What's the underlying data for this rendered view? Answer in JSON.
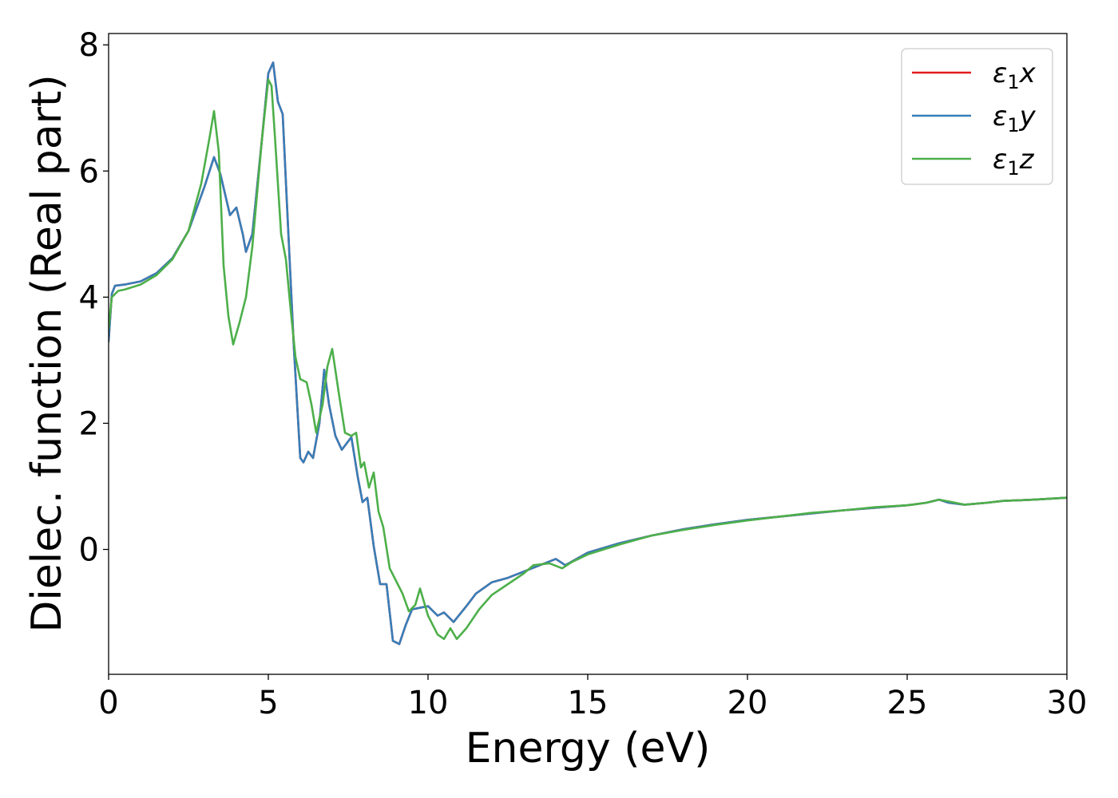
{
  "chart_data": {
    "type": "line",
    "title": "",
    "xlabel": "Energy (eV)",
    "ylabel": "Dielec. function (Real part)",
    "xlim": [
      0,
      30
    ],
    "ylim": [
      -1.98,
      8.18
    ],
    "xticks": [
      "0",
      "5",
      "10",
      "15",
      "20",
      "25",
      "30"
    ],
    "yticks": [
      "0",
      "2",
      "4",
      "6",
      "8"
    ],
    "grid": false,
    "legend_position": "top-right",
    "series": [
      {
        "name": "ε1x",
        "legend_main": "ε",
        "legend_sub": "1",
        "legend_suffix": "x",
        "color": "#e41a1c",
        "points": [
          [
            0,
            3.3
          ],
          [
            0.1,
            4.05
          ],
          [
            0.2,
            4.18
          ],
          [
            0.5,
            4.2
          ],
          [
            1,
            4.25
          ],
          [
            1.5,
            4.38
          ],
          [
            2,
            4.62
          ],
          [
            2.5,
            5.05
          ],
          [
            3,
            5.75
          ],
          [
            3.3,
            6.22
          ],
          [
            3.5,
            5.95
          ],
          [
            3.8,
            5.3
          ],
          [
            4.0,
            5.42
          ],
          [
            4.2,
            5.0
          ],
          [
            4.3,
            4.72
          ],
          [
            4.5,
            5.0
          ],
          [
            4.8,
            6.5
          ],
          [
            5.0,
            7.55
          ],
          [
            5.15,
            7.72
          ],
          [
            5.3,
            7.1
          ],
          [
            5.45,
            6.9
          ],
          [
            5.6,
            5.3
          ],
          [
            5.8,
            3.2
          ],
          [
            6.0,
            1.45
          ],
          [
            6.1,
            1.38
          ],
          [
            6.25,
            1.55
          ],
          [
            6.4,
            1.45
          ],
          [
            6.6,
            2.0
          ],
          [
            6.75,
            2.85
          ],
          [
            6.9,
            2.3
          ],
          [
            7.1,
            1.8
          ],
          [
            7.3,
            1.58
          ],
          [
            7.6,
            1.78
          ],
          [
            7.8,
            1.15
          ],
          [
            7.95,
            0.75
          ],
          [
            8.1,
            0.82
          ],
          [
            8.3,
            0.05
          ],
          [
            8.5,
            -0.55
          ],
          [
            8.7,
            -0.55
          ],
          [
            8.9,
            -1.45
          ],
          [
            9.1,
            -1.5
          ],
          [
            9.3,
            -1.2
          ],
          [
            9.5,
            -0.95
          ],
          [
            9.8,
            -0.92
          ],
          [
            10.0,
            -0.9
          ],
          [
            10.3,
            -1.05
          ],
          [
            10.5,
            -1.0
          ],
          [
            10.8,
            -1.15
          ],
          [
            11.2,
            -0.9
          ],
          [
            11.5,
            -0.7
          ],
          [
            12,
            -0.52
          ],
          [
            12.5,
            -0.45
          ],
          [
            13,
            -0.35
          ],
          [
            13.5,
            -0.25
          ],
          [
            14,
            -0.15
          ],
          [
            14.3,
            -0.25
          ],
          [
            15,
            -0.05
          ],
          [
            16,
            0.1
          ],
          [
            17,
            0.22
          ],
          [
            18,
            0.32
          ],
          [
            19,
            0.4
          ],
          [
            20,
            0.47
          ],
          [
            21,
            0.52
          ],
          [
            22,
            0.57
          ],
          [
            23,
            0.62
          ],
          [
            24,
            0.66
          ],
          [
            25,
            0.7
          ],
          [
            25.6,
            0.74
          ],
          [
            26,
            0.79
          ],
          [
            26.3,
            0.74
          ],
          [
            26.8,
            0.71
          ],
          [
            27.5,
            0.74
          ],
          [
            28,
            0.77
          ],
          [
            29,
            0.79
          ],
          [
            30,
            0.82
          ]
        ]
      },
      {
        "name": "ε1y",
        "legend_main": "ε",
        "legend_sub": "1",
        "legend_suffix": "y",
        "color": "#377eb8",
        "points": [
          [
            0,
            3.3
          ],
          [
            0.1,
            4.05
          ],
          [
            0.2,
            4.18
          ],
          [
            0.5,
            4.2
          ],
          [
            1,
            4.25
          ],
          [
            1.5,
            4.38
          ],
          [
            2,
            4.62
          ],
          [
            2.5,
            5.05
          ],
          [
            3,
            5.75
          ],
          [
            3.3,
            6.22
          ],
          [
            3.5,
            5.95
          ],
          [
            3.8,
            5.3
          ],
          [
            4.0,
            5.42
          ],
          [
            4.2,
            5.0
          ],
          [
            4.3,
            4.72
          ],
          [
            4.5,
            5.0
          ],
          [
            4.8,
            6.5
          ],
          [
            5.0,
            7.55
          ],
          [
            5.15,
            7.72
          ],
          [
            5.3,
            7.1
          ],
          [
            5.45,
            6.9
          ],
          [
            5.6,
            5.3
          ],
          [
            5.8,
            3.2
          ],
          [
            6.0,
            1.45
          ],
          [
            6.1,
            1.38
          ],
          [
            6.25,
            1.55
          ],
          [
            6.4,
            1.45
          ],
          [
            6.6,
            2.0
          ],
          [
            6.75,
            2.85
          ],
          [
            6.9,
            2.3
          ],
          [
            7.1,
            1.8
          ],
          [
            7.3,
            1.58
          ],
          [
            7.6,
            1.78
          ],
          [
            7.8,
            1.15
          ],
          [
            7.95,
            0.75
          ],
          [
            8.1,
            0.82
          ],
          [
            8.3,
            0.05
          ],
          [
            8.5,
            -0.55
          ],
          [
            8.7,
            -0.55
          ],
          [
            8.9,
            -1.45
          ],
          [
            9.1,
            -1.5
          ],
          [
            9.3,
            -1.2
          ],
          [
            9.5,
            -0.95
          ],
          [
            9.8,
            -0.92
          ],
          [
            10.0,
            -0.9
          ],
          [
            10.3,
            -1.05
          ],
          [
            10.5,
            -1.0
          ],
          [
            10.8,
            -1.15
          ],
          [
            11.2,
            -0.9
          ],
          [
            11.5,
            -0.7
          ],
          [
            12,
            -0.52
          ],
          [
            12.5,
            -0.45
          ],
          [
            13,
            -0.35
          ],
          [
            13.5,
            -0.25
          ],
          [
            14,
            -0.15
          ],
          [
            14.3,
            -0.25
          ],
          [
            15,
            -0.05
          ],
          [
            16,
            0.1
          ],
          [
            17,
            0.22
          ],
          [
            18,
            0.32
          ],
          [
            19,
            0.4
          ],
          [
            20,
            0.47
          ],
          [
            21,
            0.52
          ],
          [
            22,
            0.57
          ],
          [
            23,
            0.62
          ],
          [
            24,
            0.66
          ],
          [
            25,
            0.7
          ],
          [
            25.6,
            0.74
          ],
          [
            26,
            0.79
          ],
          [
            26.3,
            0.74
          ],
          [
            26.8,
            0.71
          ],
          [
            27.5,
            0.74
          ],
          [
            28,
            0.77
          ],
          [
            29,
            0.79
          ],
          [
            30,
            0.82
          ]
        ]
      },
      {
        "name": "ε1z",
        "legend_main": "ε",
        "legend_sub": "1",
        "legend_suffix": "z",
        "color": "#4daf4a",
        "points": [
          [
            0,
            3.5
          ],
          [
            0.1,
            4.0
          ],
          [
            0.3,
            4.1
          ],
          [
            0.5,
            4.12
          ],
          [
            1,
            4.2
          ],
          [
            1.5,
            4.35
          ],
          [
            2,
            4.6
          ],
          [
            2.5,
            5.05
          ],
          [
            2.9,
            5.8
          ],
          [
            3.15,
            6.5
          ],
          [
            3.3,
            6.95
          ],
          [
            3.45,
            6.3
          ],
          [
            3.6,
            4.5
          ],
          [
            3.75,
            3.7
          ],
          [
            3.9,
            3.25
          ],
          [
            4.1,
            3.6
          ],
          [
            4.3,
            4.0
          ],
          [
            4.5,
            4.8
          ],
          [
            4.8,
            6.5
          ],
          [
            5.0,
            7.45
          ],
          [
            5.1,
            7.35
          ],
          [
            5.2,
            6.6
          ],
          [
            5.4,
            5.0
          ],
          [
            5.55,
            4.6
          ],
          [
            5.7,
            3.8
          ],
          [
            5.85,
            3.05
          ],
          [
            6.0,
            2.7
          ],
          [
            6.2,
            2.65
          ],
          [
            6.35,
            2.3
          ],
          [
            6.5,
            1.85
          ],
          [
            6.7,
            2.3
          ],
          [
            6.85,
            2.9
          ],
          [
            7.0,
            3.18
          ],
          [
            7.2,
            2.5
          ],
          [
            7.4,
            1.85
          ],
          [
            7.6,
            1.8
          ],
          [
            7.75,
            1.85
          ],
          [
            7.9,
            1.3
          ],
          [
            8.0,
            1.38
          ],
          [
            8.15,
            0.98
          ],
          [
            8.3,
            1.22
          ],
          [
            8.45,
            0.6
          ],
          [
            8.6,
            0.35
          ],
          [
            8.8,
            -0.3
          ],
          [
            9.0,
            -0.5
          ],
          [
            9.2,
            -0.7
          ],
          [
            9.4,
            -0.98
          ],
          [
            9.6,
            -0.88
          ],
          [
            9.75,
            -0.62
          ],
          [
            10.0,
            -1.05
          ],
          [
            10.3,
            -1.35
          ],
          [
            10.5,
            -1.42
          ],
          [
            10.7,
            -1.25
          ],
          [
            10.9,
            -1.42
          ],
          [
            11.2,
            -1.25
          ],
          [
            11.6,
            -0.95
          ],
          [
            12,
            -0.72
          ],
          [
            12.5,
            -0.55
          ],
          [
            13,
            -0.38
          ],
          [
            13.3,
            -0.25
          ],
          [
            13.8,
            -0.22
          ],
          [
            14.2,
            -0.3
          ],
          [
            14.5,
            -0.2
          ],
          [
            15,
            -0.08
          ],
          [
            16,
            0.08
          ],
          [
            17,
            0.22
          ],
          [
            18,
            0.31
          ],
          [
            19,
            0.39
          ],
          [
            20,
            0.46
          ],
          [
            21,
            0.52
          ],
          [
            22,
            0.58
          ],
          [
            23,
            0.62
          ],
          [
            24,
            0.67
          ],
          [
            25,
            0.7
          ],
          [
            25.6,
            0.74
          ],
          [
            26,
            0.79
          ],
          [
            26.3,
            0.76
          ],
          [
            26.8,
            0.71
          ],
          [
            27.5,
            0.74
          ],
          [
            28,
            0.77
          ],
          [
            29,
            0.79
          ],
          [
            30,
            0.82
          ]
        ]
      }
    ]
  }
}
